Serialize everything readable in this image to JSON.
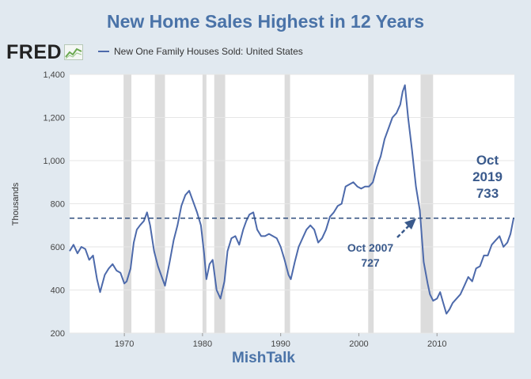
{
  "title": "New Home Sales Highest in 12 Years",
  "logo": {
    "text": "FRED",
    "icon": "line-chart-icon"
  },
  "legend": {
    "label": "New One Family Houses Sold: United States",
    "color": "#4d6aab"
  },
  "footer": {
    "watermark": "MishTalk"
  },
  "annotations": {
    "current": {
      "line1": "Oct",
      "line2": "2019",
      "line3": "733"
    },
    "previous": {
      "line1": "Oct 2007",
      "line2": "727"
    }
  },
  "colors": {
    "series": "#4d6aab",
    "recession": "#dcdcdc",
    "title": "#4a73a8",
    "annotation": "#3a5a8c"
  },
  "chart_data": {
    "type": "line",
    "title": "New Home Sales Highest in 12 Years",
    "ylabel": "Thousands",
    "xlabel": "",
    "xlim": [
      1963.0,
      2019.9
    ],
    "ylim": [
      200,
      1400
    ],
    "xticks": [
      "1970",
      "1980",
      "1990",
      "2000",
      "2010"
    ],
    "yticks": [
      "200",
      "400",
      "600",
      "800",
      "1,000",
      "1,200",
      "1,400"
    ],
    "reference_line": 733,
    "recessions": [
      [
        1969.9,
        1970.9
      ],
      [
        1973.9,
        1975.2
      ],
      [
        1980.0,
        1980.5
      ],
      [
        1981.5,
        1982.9
      ],
      [
        1990.5,
        1991.2
      ],
      [
        2001.2,
        2001.9
      ],
      [
        2007.9,
        2009.5
      ]
    ],
    "series": [
      {
        "name": "New One Family Houses Sold: United States",
        "x": [
          1963.0,
          1963.5,
          1964.0,
          1964.5,
          1965.0,
          1965.5,
          1966.0,
          1966.5,
          1966.9,
          1967.5,
          1968.0,
          1968.5,
          1969.0,
          1969.5,
          1970.0,
          1970.3,
          1970.8,
          1971.2,
          1971.6,
          1972.0,
          1972.5,
          1972.9,
          1973.3,
          1973.8,
          1974.3,
          1974.8,
          1975.2,
          1975.8,
          1976.3,
          1976.8,
          1977.3,
          1977.8,
          1978.3,
          1978.8,
          1979.3,
          1979.8,
          1980.2,
          1980.5,
          1980.9,
          1981.3,
          1981.8,
          1982.3,
          1982.8,
          1983.2,
          1983.7,
          1984.2,
          1984.7,
          1985.2,
          1985.6,
          1986.0,
          1986.5,
          1987.0,
          1987.5,
          1988.0,
          1988.5,
          1989.0,
          1989.5,
          1990.0,
          1990.5,
          1991.0,
          1991.3,
          1991.8,
          1992.3,
          1992.8,
          1993.3,
          1993.8,
          1994.3,
          1994.8,
          1995.3,
          1995.8,
          1996.3,
          1996.8,
          1997.3,
          1997.8,
          1998.3,
          1998.8,
          1999.3,
          1999.8,
          2000.3,
          2000.8,
          2001.3,
          2001.8,
          2002.3,
          2002.8,
          2003.3,
          2003.8,
          2004.3,
          2004.8,
          2005.3,
          2005.6,
          2005.9,
          2006.3,
          2006.8,
          2007.3,
          2007.8,
          2008.3,
          2008.8,
          2009.1,
          2009.5,
          2010.0,
          2010.4,
          2010.8,
          2011.2,
          2011.6,
          2012.0,
          2012.5,
          2013.0,
          2013.5,
          2014.0,
          2014.5,
          2015.0,
          2015.5,
          2016.0,
          2016.5,
          2017.0,
          2017.5,
          2018.0,
          2018.5,
          2019.0,
          2019.4,
          2019.8
        ],
        "values": [
          580,
          610,
          570,
          600,
          590,
          540,
          560,
          450,
          390,
          470,
          500,
          520,
          490,
          480,
          430,
          440,
          500,
          620,
          680,
          700,
          720,
          760,
          700,
          580,
          510,
          460,
          420,
          530,
          630,
          700,
          790,
          840,
          860,
          810,
          760,
          700,
          570,
          450,
          520,
          540,
          400,
          360,
          440,
          580,
          640,
          650,
          610,
          680,
          720,
          750,
          760,
          680,
          650,
          650,
          660,
          650,
          640,
          600,
          540,
          470,
          450,
          530,
          600,
          640,
          680,
          700,
          680,
          620,
          640,
          680,
          740,
          760,
          790,
          800,
          880,
          890,
          900,
          880,
          870,
          880,
          880,
          900,
          970,
          1020,
          1100,
          1150,
          1200,
          1220,
          1260,
          1320,
          1350,
          1200,
          1050,
          880,
          770,
          530,
          430,
          380,
          350,
          360,
          390,
          340,
          290,
          310,
          340,
          360,
          380,
          420,
          460,
          440,
          500,
          510,
          560,
          560,
          610,
          630,
          650,
          600,
          620,
          660,
          733
        ]
      }
    ]
  }
}
